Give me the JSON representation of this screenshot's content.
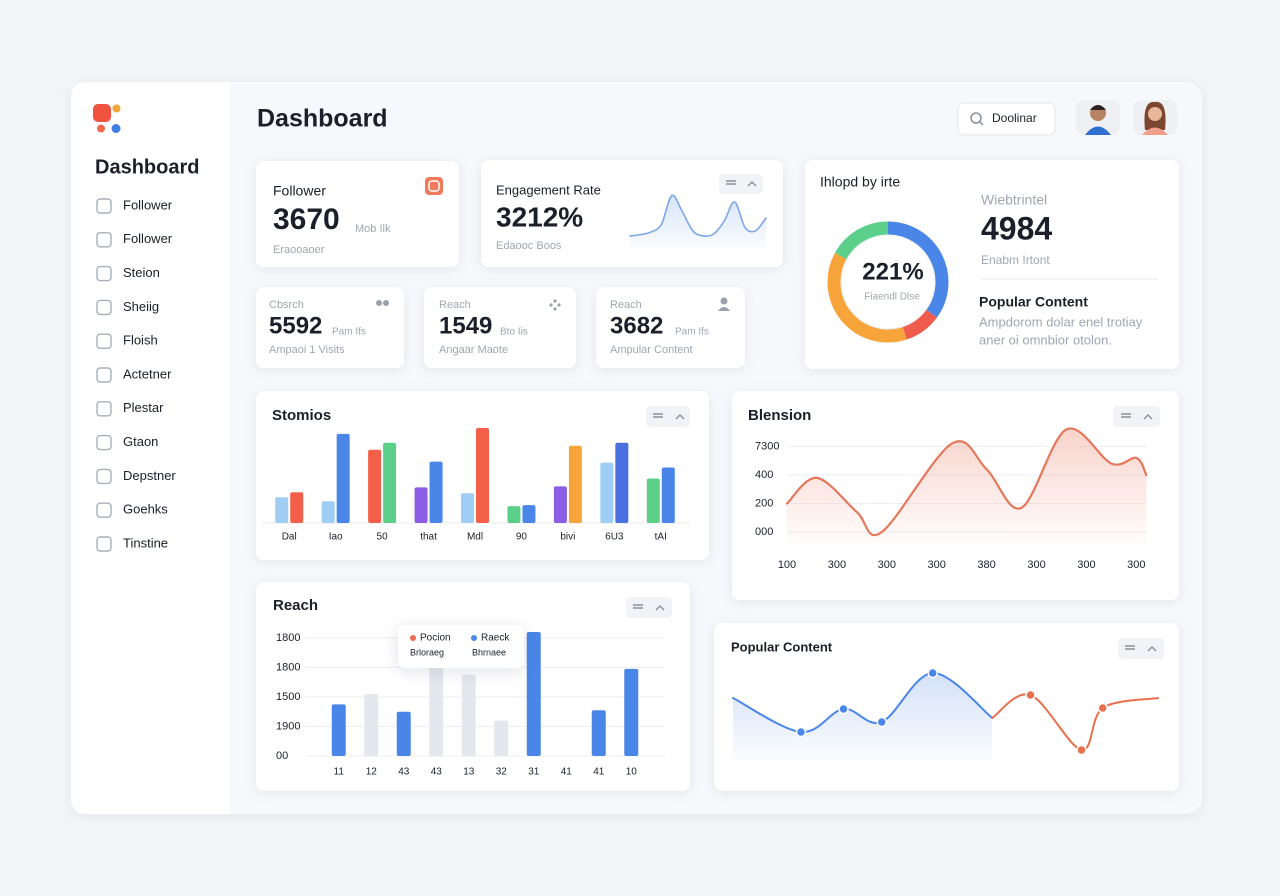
{
  "sidebar": {
    "title": "Dashboard",
    "items": [
      "Follower",
      "Follower",
      "Steion",
      "Sheiig",
      "Floish",
      "Actetner",
      "Plestar",
      "Gtaon",
      "Depstner",
      "Goehks",
      "Tinstine"
    ]
  },
  "header": {
    "title": "Dashboard",
    "search": "Doolinar"
  },
  "cards": [
    {
      "label": "Follower",
      "value": "3670",
      "note": "Mob Ilk",
      "caption": "Eraooaoer"
    },
    {
      "label": "Engagement Rate",
      "value": "3212%",
      "caption": "Edaooc Boos"
    },
    {
      "label": "Cbsrch",
      "value": "5592",
      "note": "Pam Ifs",
      "caption": "Ampaoi 1 Visits"
    },
    {
      "label": "Reach",
      "value": "1549",
      "note": "Bto Iis",
      "caption": "Angaar Maote"
    },
    {
      "label": "Reach",
      "value": "3682",
      "note": "Pam Ifs",
      "caption": "Ampular Content"
    }
  ],
  "summary": {
    "stat_label": "Wiebtrintel",
    "stat_value": "4984",
    "stat_caption": "Enabm Irtont",
    "heading": "Popular Content",
    "text": [
      "Ampdorom dolar enel trotiay",
      "aner oi omnbior otolon."
    ]
  },
  "tooltip": {
    "items": [
      {
        "name": "Pocion",
        "color": "#ef6a4f"
      },
      {
        "name": "Raeck",
        "color": "#4a86e8"
      }
    ],
    "sub": [
      "Brloraeg",
      "Bhrnaee"
    ]
  },
  "chart_data": [
    {
      "type": "line",
      "values": [
        22,
        24,
        28,
        40,
        85,
        60,
        30,
        22,
        25,
        45,
        75,
        35,
        30,
        50
      ],
      "color": "#7ea6ea",
      "ylim": [
        0,
        100
      ]
    },
    {
      "type": "bar",
      "title": "Stomios",
      "categories": [
        "Dal",
        "Iao",
        "50",
        "that",
        "Mdl",
        "90",
        "bivi",
        "6U3",
        "tAI"
      ],
      "series": [
        {
          "values": [
            26,
            22,
            74,
            36,
            30,
            17,
            37,
            61,
            45
          ],
          "colors": [
            "#9fcdf3",
            "#9fcdf3",
            "#f2604a",
            "#8c5ee6",
            "#9fcdf3",
            "#5cd08a",
            "#8c5ee6",
            "#9fcdf3",
            "#5cd08a"
          ]
        },
        {
          "values": [
            31,
            90,
            81,
            62,
            96,
            18,
            78,
            81,
            56
          ],
          "colors": [
            "#f2604a",
            "#4a86e8",
            "#5cd08a",
            "#4a86e8",
            "#f2604a",
            "#4a86e8",
            "#f7a53a",
            "#4a6fe0",
            "#4a86e8"
          ]
        }
      ],
      "ylim": [
        0,
        100
      ]
    },
    {
      "type": "pie",
      "title": "Ihlopd by irte",
      "center_label": "221%",
      "center_caption": "Fiaendl Dlse",
      "values": [
        35,
        10,
        38,
        17
      ],
      "colors": [
        "#4a86e8",
        "#ef5b4c",
        "#f7a53a",
        "#5cd08a"
      ]
    },
    {
      "type": "area",
      "title": "Blension",
      "x": [
        0,
        0.6,
        1.4,
        1.9,
        3.3,
        4.0,
        4.7,
        5.6,
        6.5,
        7.0,
        7.2
      ],
      "values": [
        1.0,
        1.9,
        0.7,
        0,
        3.1,
        2.2,
        0.85,
        3.6,
        2.4,
        2.6,
        2.0
      ],
      "color": "#e5785c",
      "xlim": [
        0,
        7.2
      ],
      "xticks": [
        {
          "value": 0,
          "label": "100"
        },
        {
          "value": 1,
          "label": "300"
        },
        {
          "value": 2,
          "label": "300"
        },
        {
          "value": 3,
          "label": "300"
        },
        {
          "value": 4,
          "label": "380"
        },
        {
          "value": 5,
          "label": "300"
        },
        {
          "value": 6,
          "label": "300"
        },
        {
          "value": 7,
          "label": "300"
        }
      ],
      "ylim": [
        -0.4,
        4
      ],
      "yticks": [
        {
          "value": 3,
          "label": "7300"
        },
        {
          "value": 2,
          "label": "400"
        },
        {
          "value": 1,
          "label": "200"
        },
        {
          "value": 0,
          "label": "000"
        }
      ],
      "grid": true
    },
    {
      "type": "bar",
      "title": "Reach",
      "categories": [
        "11",
        "12",
        "43",
        "43",
        "13",
        "32",
        "31",
        "41",
        "41",
        "10"
      ],
      "series": [
        {
          "values": [
            1.75,
            2.1,
            1.5,
            3.0,
            2.75,
            1.2,
            4.2,
            0,
            1.55,
            2.95
          ],
          "colors": [
            "#4a86e8",
            "#e4e7ee",
            "#4a86e8",
            "#e4e7ee",
            "#e4e7ee",
            "#e4e7ee",
            "#4a86e8",
            "#4a86e8",
            "#4a86e8",
            "#4a86e8"
          ]
        }
      ],
      "ylim": [
        0,
        4.3
      ],
      "yticks": [
        {
          "value": 4,
          "label": "1800"
        },
        {
          "value": 3,
          "label": "1800"
        },
        {
          "value": 2,
          "label": "1500"
        },
        {
          "value": 1,
          "label": "1900"
        },
        {
          "value": 0,
          "label": "00"
        }
      ],
      "grid": true
    },
    {
      "type": "line",
      "title": "Popular Content",
      "series": [
        {
          "color": "#4a86e8",
          "x": [
            0,
            16,
            26,
            35,
            47,
            61
          ],
          "values": [
            62,
            28,
            51,
            38,
            87,
            42
          ]
        },
        {
          "color": "#e8704f",
          "x": [
            61,
            70,
            82,
            87,
            100
          ],
          "values": [
            42,
            65,
            10,
            52,
            62
          ]
        }
      ],
      "xlim": [
        0,
        100
      ],
      "ylim": [
        0,
        100
      ]
    }
  ]
}
